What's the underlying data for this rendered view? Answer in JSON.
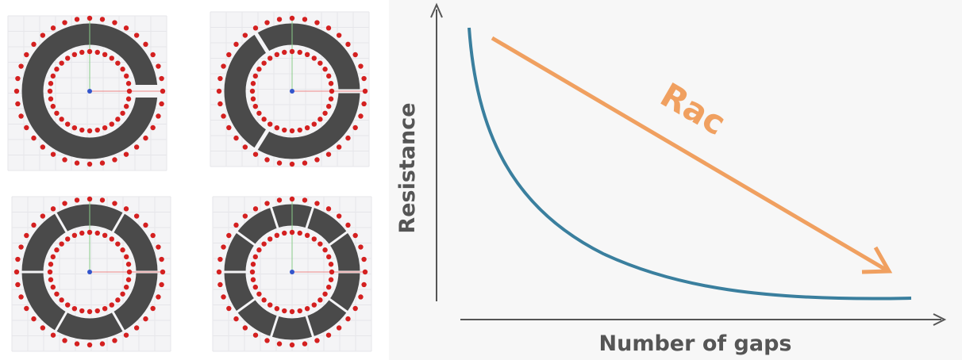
{
  "axes": {
    "y_label": "Resistance",
    "x_label": "Number of gaps"
  },
  "annotation": "Rac"
}
